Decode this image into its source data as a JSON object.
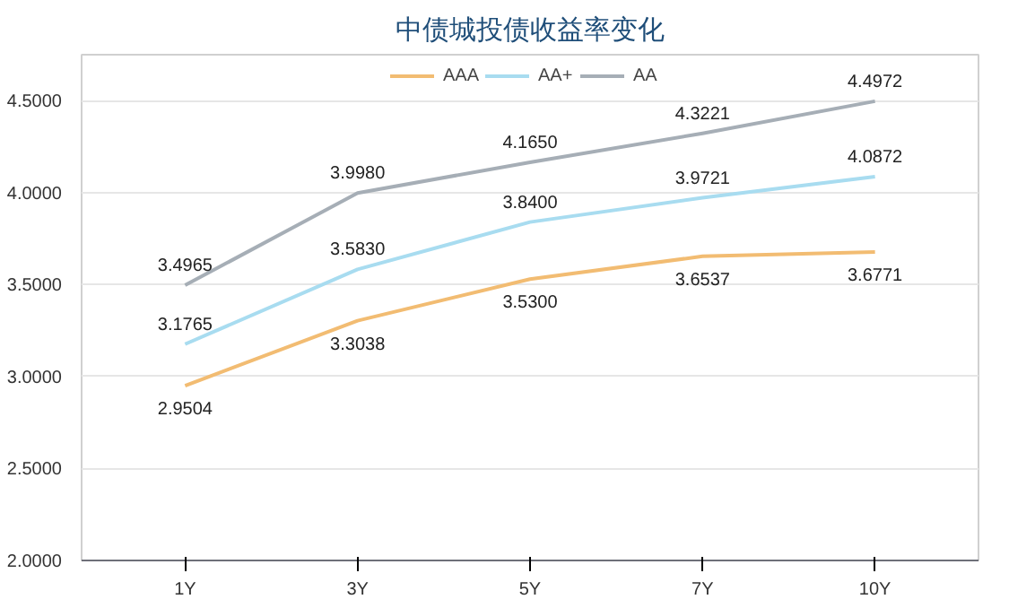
{
  "chart_data": {
    "type": "line",
    "title": "中债城投债收益率变化",
    "categories": [
      "1Y",
      "3Y",
      "5Y",
      "7Y",
      "10Y"
    ],
    "ylim": [
      2,
      4.75
    ],
    "yticks": [
      {
        "value": 2,
        "label": "2.0000"
      },
      {
        "value": 2.5,
        "label": "2.5000"
      },
      {
        "value": 3,
        "label": "3.0000"
      },
      {
        "value": 3.5,
        "label": "3.5000"
      },
      {
        "value": 4,
        "label": "4.0000"
      },
      {
        "value": 4.5,
        "label": "4.5000"
      }
    ],
    "grid": "y",
    "legend": "top",
    "marker": "none",
    "line_style": "solid",
    "series": [
      {
        "name": "AAA",
        "color": "#f2bc72",
        "values": [
          2.9504,
          3.3038,
          3.53,
          3.6537,
          3.6771
        ],
        "value_labels": [
          "2.9504",
          "3.3038",
          "3.5300",
          "3.6537",
          "3.6771"
        ]
      },
      {
        "name": "AA+",
        "color": "#a8dcf0",
        "values": [
          3.1765,
          3.583,
          3.84,
          3.9721,
          4.0872
        ],
        "value_labels": [
          "3.1765",
          "3.5830",
          "3.8400",
          "3.9721",
          "4.0872"
        ]
      },
      {
        "name": "AA",
        "color": "#a6aeb6",
        "values": [
          3.4965,
          3.998,
          4.165,
          4.3221,
          4.4972
        ],
        "value_labels": [
          "3.4965",
          "3.9980",
          "4.1650",
          "4.3221",
          "4.4972"
        ]
      }
    ]
  }
}
